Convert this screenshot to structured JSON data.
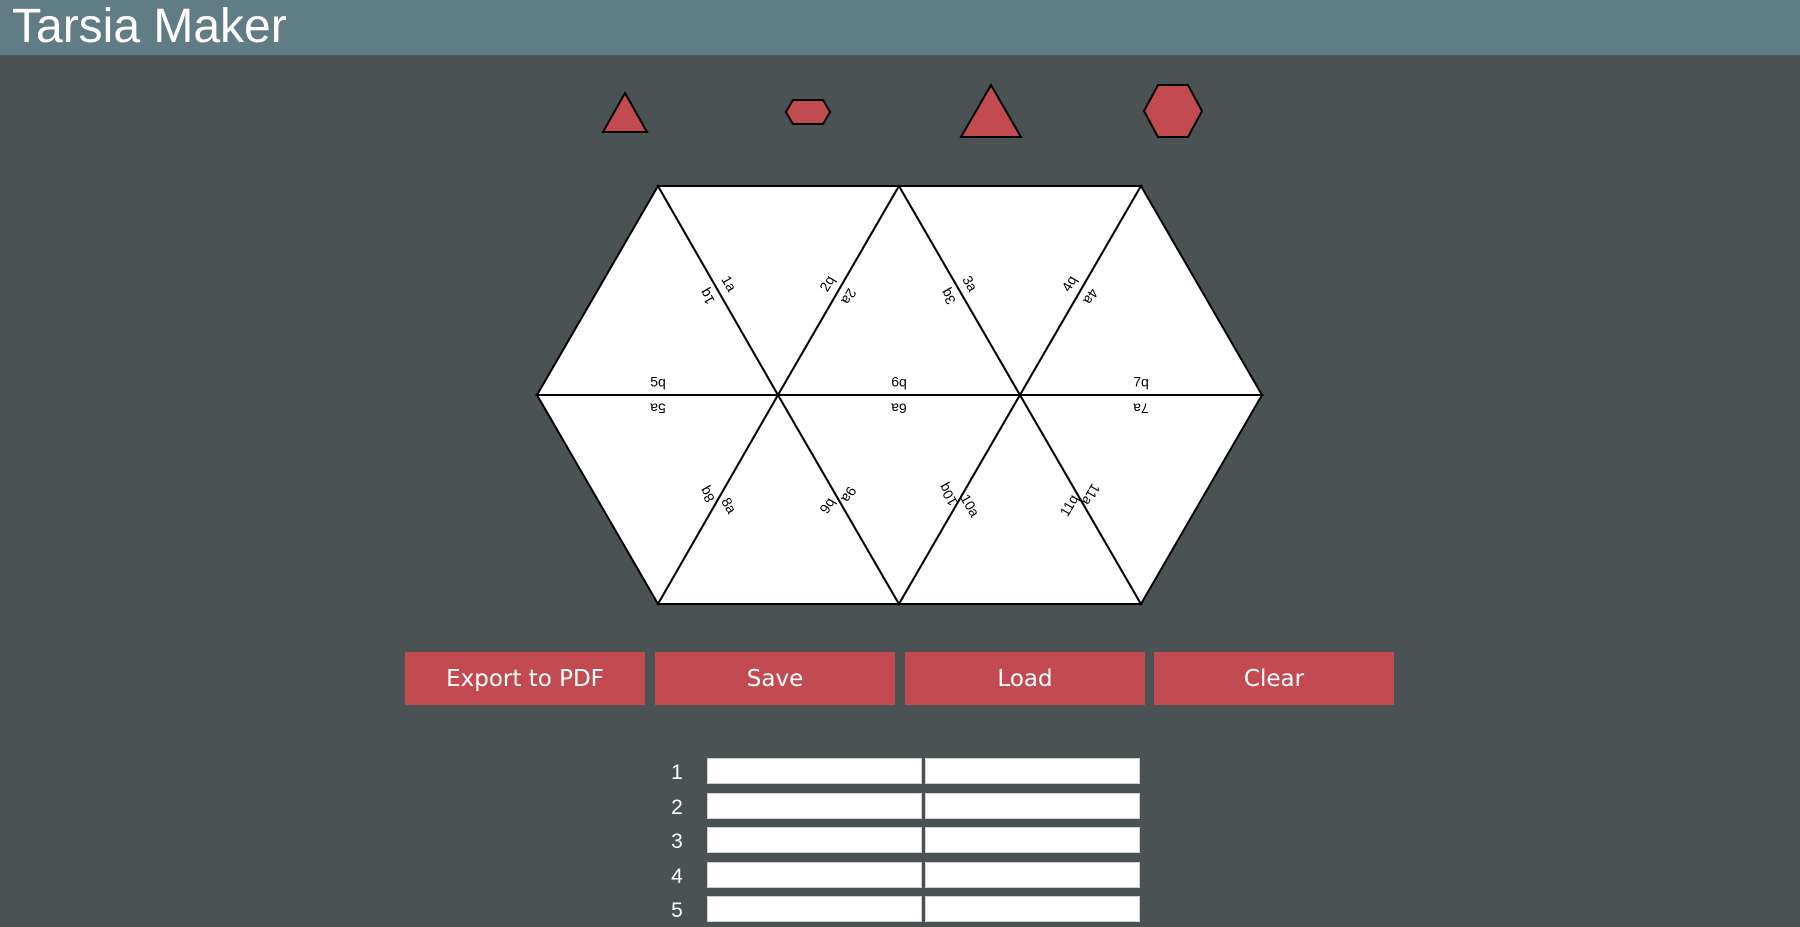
{
  "app": {
    "title": "Tarsia Maker"
  },
  "colors": {
    "header": "#607d86",
    "background": "#4b5254",
    "accent": "#c24b51"
  },
  "shape_picker": {
    "options": [
      {
        "name": "small-triangle-shape-icon"
      },
      {
        "name": "small-hexagon-shape-icon"
      },
      {
        "name": "large-triangle-shape-icon"
      },
      {
        "name": "large-hexagon-shape-icon"
      }
    ]
  },
  "puzzle": {
    "labels": {
      "e1q": "1q",
      "e1a": "1a",
      "e2q": "2q",
      "e2a": "2a",
      "e3q": "3q",
      "e3a": "3a",
      "e4q": "4q",
      "e4a": "4a",
      "e5q": "5q",
      "e5a": "5a",
      "e6q": "6q",
      "e6a": "6a",
      "e7q": "7q",
      "e7a": "7a",
      "e8q": "8q",
      "e8a": "8a",
      "e9q": "9q",
      "e9a": "9a",
      "e10q": "10q",
      "e10a": "10a",
      "e11q": "11q",
      "e11a": "11a"
    }
  },
  "actions": {
    "export_label": "Export to PDF",
    "save_label": "Save",
    "load_label": "Load",
    "clear_label": "Clear"
  },
  "pairs": [
    {
      "num": "1",
      "question": "",
      "answer": ""
    },
    {
      "num": "2",
      "question": "",
      "answer": ""
    },
    {
      "num": "3",
      "question": "",
      "answer": ""
    },
    {
      "num": "4",
      "question": "",
      "answer": ""
    },
    {
      "num": "5",
      "question": "",
      "answer": ""
    }
  ]
}
